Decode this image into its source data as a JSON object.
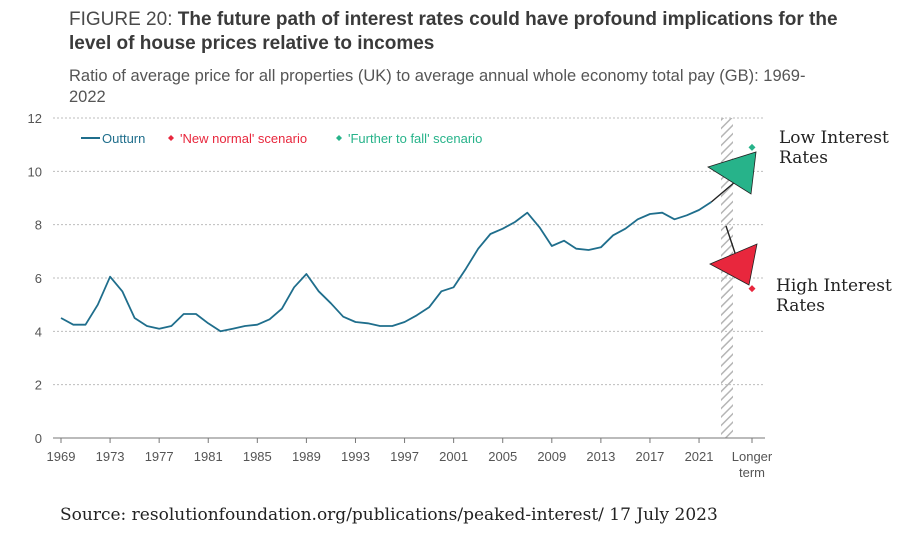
{
  "figure": {
    "label": "FIGURE 20:",
    "headline": "The future path of interest rates could have profound implications for the level of house prices relative to incomes",
    "subtitle": "Ratio of average price for all properties (UK) to average annual whole economy total pay (GB): 1969-2022"
  },
  "source": "Source: resolutionfoundation.org/publications/peaked-interest/ 17 July 2023",
  "annotations": {
    "low": "Low Interest Rates",
    "high": "High Interest Rates"
  },
  "colors": {
    "outturn": "#1f6e8c",
    "new_normal": "#e8273d",
    "further_fall": "#27b38a",
    "grid": "#bdbdbd",
    "axis_text": "#555555"
  },
  "chart_data": {
    "type": "line",
    "title": "The future path of interest rates could have profound implications for the level of house prices relative to incomes",
    "xlabel": "",
    "ylabel": "",
    "ylim": [
      0,
      12
    ],
    "yticks": [
      0,
      2,
      4,
      6,
      8,
      10,
      12
    ],
    "xticks": [
      "1969",
      "1973",
      "1977",
      "1981",
      "1985",
      "1989",
      "1993",
      "1997",
      "2001",
      "2005",
      "2009",
      "2013",
      "2017",
      "2021"
    ],
    "extra_category": "Longer term",
    "legend": [
      "Outturn",
      "'New normal' scenario",
      "'Further to fall' scenario"
    ],
    "legend_position": "top-left",
    "series": [
      {
        "name": "Outturn",
        "x": [
          1969,
          1970,
          1971,
          1972,
          1973,
          1974,
          1975,
          1976,
          1977,
          1978,
          1979,
          1980,
          1981,
          1982,
          1983,
          1984,
          1985,
          1986,
          1987,
          1988,
          1989,
          1990,
          1991,
          1992,
          1993,
          1994,
          1995,
          1996,
          1997,
          1998,
          1999,
          2000,
          2001,
          2002,
          2003,
          2004,
          2005,
          2006,
          2007,
          2008,
          2009,
          2010,
          2011,
          2012,
          2013,
          2014,
          2015,
          2016,
          2017,
          2018,
          2019,
          2020,
          2021,
          2022
        ],
        "values": [
          4.5,
          4.25,
          4.25,
          5.0,
          6.05,
          5.5,
          4.5,
          4.2,
          4.1,
          4.2,
          4.65,
          4.65,
          4.3,
          4.0,
          4.1,
          4.2,
          4.25,
          4.45,
          4.85,
          5.65,
          6.15,
          5.5,
          5.05,
          4.55,
          4.35,
          4.3,
          4.2,
          4.2,
          4.35,
          4.6,
          4.9,
          5.5,
          5.65,
          6.35,
          7.1,
          7.65,
          7.85,
          8.1,
          8.45,
          7.9,
          7.2,
          7.4,
          7.1,
          7.05,
          7.15,
          7.6,
          7.85,
          8.2,
          8.4,
          8.45,
          8.2,
          8.35,
          8.55,
          8.85
        ]
      },
      {
        "name": "'New normal' scenario",
        "x": [
          "Longer term"
        ],
        "values": [
          5.6
        ]
      },
      {
        "name": "'Further to fall' scenario",
        "x": [
          "Longer term"
        ],
        "values": [
          10.9
        ]
      }
    ]
  }
}
